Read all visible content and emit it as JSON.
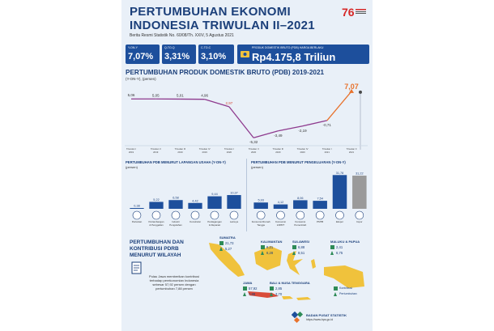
{
  "header": {
    "title_line1": "PERTUMBUHAN EKONOMI",
    "title_line2": "INDONESIA TRIWULAN II–2021",
    "subtitle": "Berita Resmi Statistik No. 60/08/Th. XXIV, 5 Agustus 2021",
    "logo_number": "76",
    "logo_text": "INDONESIA TANGGUH INDONESIA TUMBUH"
  },
  "stats": [
    {
      "label": "Y-ON-Y",
      "value": "7,07%"
    },
    {
      "label": "Q-TO-Q",
      "value": "3,31%"
    },
    {
      "label": "C-TO-C",
      "value": "3,10%"
    }
  ],
  "gdp": {
    "label": "PRODUK DOMESTIK BRUTO (PDB) HARGA BERLAKU",
    "value": "Rp4.175,8 Triliun"
  },
  "chart_data": [
    {
      "type": "line",
      "title": "PERTUMBUHAN PRODUK DOMESTIK BRUTO (PDB) 2019-2021",
      "ylabel": "(Y-ON-Y), (persen)",
      "categories": [
        "Triwulan I 2019",
        "Triwulan II 2019",
        "Triwulan III 2019",
        "Triwulan IV 2019",
        "Triwulan I 2020",
        "Triwulan II 2020",
        "Triwulan III 2020",
        "Triwulan IV 2020",
        "Triwulan I 2021",
        "Triwulan II 2021"
      ],
      "values": [
        5.06,
        5.05,
        5.01,
        4.96,
        2.97,
        -5.32,
        -3.49,
        -2.19,
        -0.71,
        7.07
      ],
      "value_labels": [
        "5,06",
        "5,05",
        "5,01",
        "4,96",
        "2,97",
        "-5,32",
        "-3,49",
        "-2,19",
        "-0,71",
        "7,07"
      ],
      "ylim": [
        -7,
        9
      ]
    },
    {
      "type": "bar",
      "title": "PERTUMBUHAN PDB MENURUT LAPANGAN USAHA (Y-ON-Y)",
      "ylabel": "(persen)",
      "categories": [
        "Pertanian",
        "Pertambangan & Penggalian",
        "Industri Pengolahan",
        "Konstruksi",
        "Perdagangan & Reparasi",
        "Lainnya"
      ],
      "values": [
        0.38,
        5.22,
        6.58,
        4.42,
        9.44,
        10.37
      ],
      "value_labels": [
        "0,38",
        "5,22",
        "6,58",
        "4,42",
        "9,44",
        "10,37"
      ]
    },
    {
      "type": "bar",
      "title": "PERTUMBUHAN PDB MENURUT PENGELUARAN (Y-ON-Y)",
      "ylabel": "(persen)",
      "categories": [
        "Konsumsi Rumah Tangga",
        "Konsumsi LNPRT",
        "Konsumsi Pemerintah",
        "PMTB",
        "Ekspor",
        "Impor"
      ],
      "values": [
        5.93,
        4.12,
        8.06,
        7.54,
        31.78,
        31.22
      ],
      "value_labels": [
        "5,93",
        "4,12",
        "8,06",
        "7,54",
        "31,78",
        "31,22"
      ]
    }
  ],
  "region": {
    "title_line1": "PERTUMBUHAN DAN",
    "title_line2": "KONTRIBUSI PDRB",
    "title_line3": "MENURUT WILAYAH",
    "note": "Pulau Jawa memberikan kontribusi terhadap perekonomian Indonesia sebesar 57,92 persen dengan pertumbuhan 7,88 persen",
    "items": [
      {
        "name": "SUMATRA",
        "kontribusi": "21,73",
        "pertumbuhan": "5,27"
      },
      {
        "name": "KALIMANTAN",
        "kontribusi": "8,21",
        "pertumbuhan": "6,28"
      },
      {
        "name": "SULAWESI",
        "kontribusi": "6,88",
        "pertumbuhan": "8,51"
      },
      {
        "name": "MALUKU & PAPUA",
        "kontribusi": "2,41",
        "pertumbuhan": "6,75"
      },
      {
        "name": "JAWA",
        "kontribusi": "57,92",
        "pertumbuhan": "7,88"
      },
      {
        "name": "BALI & NUSA TENGGARA",
        "kontribusi": "2,85",
        "pertumbuhan": "3,70"
      }
    ],
    "legend": {
      "kontribusi": "Kontribusi",
      "pertumbuhan": "Pertumbuhan"
    }
  },
  "footer": {
    "org": "BADAN PUSAT STATISTIK",
    "url": "https://www.bps.go.id"
  },
  "colors": {
    "navy": "#1b3f7a",
    "stat_blue": "#1d4f9c",
    "line": "#8e3a8e",
    "highlight": "#e8722c",
    "bar": "#1d4f9c",
    "bar_grey": "#9a9a9a",
    "map_yellow": "#f0c23c",
    "map_red": "#d94c3a",
    "green": "#2e8b57"
  }
}
